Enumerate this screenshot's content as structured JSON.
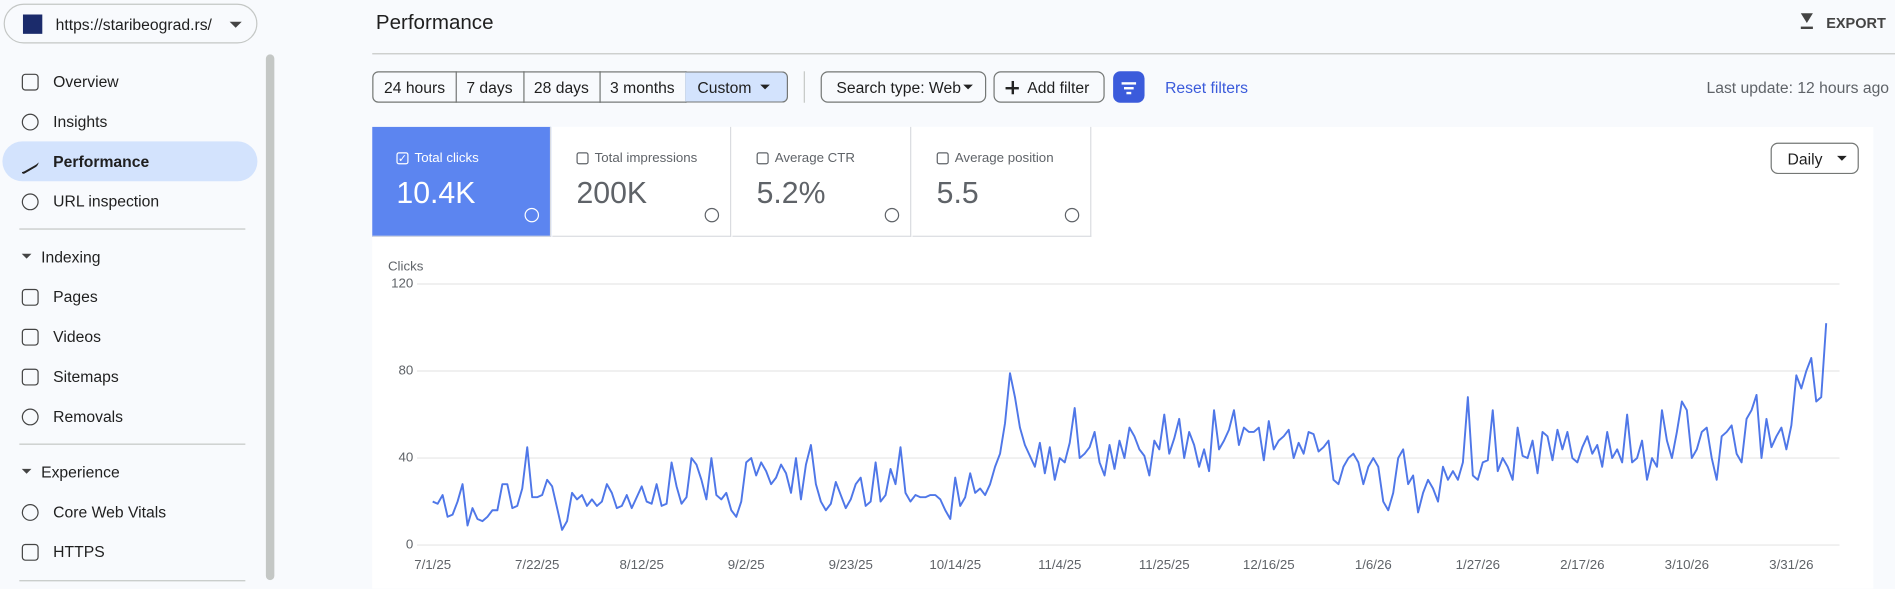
{
  "header": {
    "site": "https://staribeograd.rs/",
    "title": "Performance",
    "export": "EXPORT"
  },
  "sidebar": {
    "top": [
      "Overview",
      "Insights",
      "Performance",
      "URL inspection"
    ],
    "sections": [
      {
        "title": "Indexing",
        "items": [
          "Pages",
          "Videos",
          "Sitemaps",
          "Removals"
        ]
      },
      {
        "title": "Experience",
        "items": [
          "Core Web Vitals",
          "HTTPS"
        ]
      }
    ]
  },
  "filters": {
    "ranges": [
      "24 hours",
      "7 days",
      "28 days",
      "3 months",
      "Custom"
    ],
    "search_type": "Search type: Web",
    "add_filter": "Add filter",
    "reset": "Reset filters",
    "last_update": "Last update: 12 hours ago"
  },
  "metrics": [
    {
      "label": "Total clicks",
      "value": "10.4K"
    },
    {
      "label": "Total impressions",
      "value": "200K"
    },
    {
      "label": "Average CTR",
      "value": "5.2%"
    },
    {
      "label": "Average position",
      "value": "5.5"
    }
  ],
  "granularity": "Daily",
  "chart_data": {
    "type": "line",
    "y_label": "Clicks",
    "color": "#4f77e8",
    "ylim": [
      0,
      120
    ],
    "yticks": [
      0,
      40,
      80,
      120
    ],
    "grid": true,
    "categories": [
      "7/1/25",
      null,
      null,
      null,
      null,
      null,
      null,
      null,
      null,
      null,
      null,
      null,
      null,
      null,
      null,
      null,
      null,
      null,
      null,
      null,
      null,
      "7/22/25",
      null,
      null,
      null,
      null,
      null,
      null,
      null,
      null,
      null,
      null,
      null,
      null,
      null,
      null,
      null,
      null,
      null,
      null,
      null,
      null,
      "8/12/25",
      null,
      null,
      null,
      null,
      null,
      null,
      null,
      null,
      null,
      null,
      null,
      null,
      null,
      null,
      null,
      null,
      null,
      null,
      null,
      null,
      "9/2/25",
      null,
      null,
      null,
      null,
      null,
      null,
      null,
      null,
      null,
      null,
      null,
      null,
      null,
      null,
      null,
      null,
      null,
      null,
      null,
      null,
      "9/23/25",
      null,
      null,
      null,
      null,
      null,
      null,
      null,
      null,
      null,
      null,
      null,
      null,
      null,
      null,
      null,
      null,
      null,
      null,
      null,
      null,
      "10/14/25",
      null,
      null,
      null,
      null,
      null,
      null,
      null,
      null,
      null,
      null,
      null,
      null,
      null,
      null,
      null,
      null,
      null,
      null,
      null,
      null,
      "11/4/25",
      null,
      null,
      null,
      null,
      null,
      null,
      null,
      null,
      null,
      null,
      null,
      null,
      null,
      null,
      null,
      null,
      null,
      null,
      null,
      null,
      "11/25/25",
      null,
      null,
      null,
      null,
      null,
      null,
      null,
      null,
      null,
      null,
      null,
      null,
      null,
      null,
      null,
      null,
      null,
      null,
      null,
      null,
      "12/16/25",
      null,
      null,
      null,
      null,
      null,
      null,
      null,
      null,
      null,
      null,
      null,
      null,
      null,
      null,
      null,
      null,
      null,
      null,
      null,
      null,
      "1/6/26",
      null,
      null,
      null,
      null,
      null,
      null,
      null,
      null,
      null,
      null,
      null,
      null,
      null,
      null,
      null,
      null,
      null,
      null,
      null,
      null,
      "1/27/26",
      null,
      null,
      null,
      null,
      null,
      null,
      null,
      null,
      null,
      null,
      null,
      null,
      null,
      null,
      null,
      null,
      null,
      null,
      null,
      null,
      "2/17/26",
      null,
      null,
      null,
      null,
      null,
      null,
      null,
      null,
      null,
      null,
      null,
      null,
      null,
      null,
      null,
      null,
      null,
      null,
      null,
      null,
      "3/10/26",
      null,
      null,
      null,
      null,
      null,
      null,
      null,
      null,
      null,
      null,
      null,
      null,
      null,
      null,
      null,
      null,
      null,
      null,
      null,
      null,
      "3/31/26",
      null,
      null,
      null,
      null,
      null,
      null,
      null
    ],
    "values": [
      20,
      19,
      23,
      13,
      14,
      20,
      28,
      9,
      17,
      12,
      11,
      13,
      16,
      16,
      28,
      28,
      17,
      18,
      26,
      45,
      22,
      22,
      23,
      30,
      27,
      17,
      7,
      11,
      24,
      21,
      23,
      18,
      21,
      18,
      20,
      28,
      24,
      17,
      18,
      23,
      17,
      22,
      27,
      20,
      19,
      28,
      18,
      19,
      38,
      27,
      19,
      22,
      40,
      37,
      30,
      21,
      40,
      23,
      21,
      24,
      16,
      13,
      20,
      38,
      40,
      32,
      38,
      34,
      28,
      31,
      37,
      33,
      24,
      40,
      21,
      37,
      46,
      28,
      20,
      16,
      19,
      29,
      23,
      17,
      21,
      28,
      31,
      18,
      20,
      38,
      20,
      23,
      35,
      28,
      45,
      24,
      20,
      23,
      22,
      22,
      23,
      23,
      21,
      16,
      12,
      31,
      18,
      22,
      33,
      24,
      26,
      23,
      28,
      36,
      42,
      56,
      79,
      68,
      54,
      46,
      41,
      36,
      47,
      33,
      45,
      30,
      40,
      38,
      47,
      63,
      40,
      42,
      45,
      52,
      38,
      32,
      46,
      35,
      48,
      40,
      54,
      50,
      44,
      41,
      32,
      48,
      44,
      60,
      42,
      49,
      58,
      40,
      52,
      46,
      36,
      44,
      34,
      62,
      44,
      48,
      53,
      62,
      46,
      54,
      52,
      52,
      54,
      39,
      57,
      44,
      48,
      50,
      53,
      40,
      47,
      42,
      52,
      51,
      43,
      45,
      48,
      30,
      28,
      36,
      40,
      42,
      38,
      28,
      36,
      40,
      36,
      20,
      16,
      24,
      40,
      44,
      28,
      32,
      15,
      24,
      30,
      26,
      20,
      36,
      30,
      34,
      30,
      38,
      68,
      32,
      30,
      38,
      39,
      62,
      34,
      40,
      36,
      30,
      54,
      41,
      40,
      48,
      33,
      52,
      50,
      39,
      53,
      44,
      52,
      40,
      38,
      45,
      50,
      42,
      46,
      36,
      52,
      40,
      44,
      38,
      60,
      38,
      40,
      48,
      30,
      40,
      36,
      62,
      48,
      40,
      52,
      66,
      62,
      40,
      44,
      52,
      54,
      40,
      30,
      50,
      52,
      55,
      42,
      38,
      58,
      62,
      69,
      40,
      58,
      45,
      50,
      54,
      44,
      55,
      78,
      72,
      80,
      86,
      66,
      68,
      102
    ]
  }
}
